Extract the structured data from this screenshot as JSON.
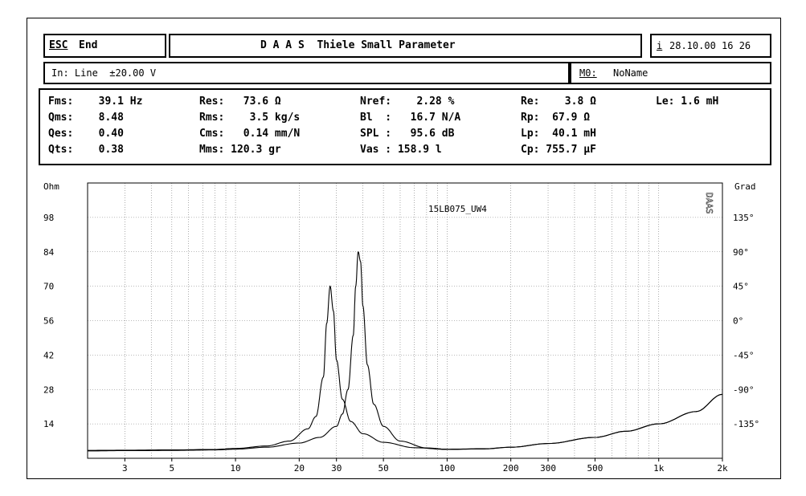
{
  "header": {
    "esc_key": "ESC",
    "esc_label": "End",
    "title": "D A A S  Thiele Small Parameter",
    "info_key": "i",
    "datetime": "28.10.00 16 26"
  },
  "input_row": {
    "input_label": "In: Line  ±20.00 V",
    "memory_key": "M0:",
    "memory_name": "NoName"
  },
  "parameters": {
    "fs": "Fms:    39.1 Hz",
    "qms": "Qms:    8.48",
    "qes": "Qes:    0.40",
    "qts": "Qts:    0.38",
    "res": "Res:   73.6 Ω",
    "rms": "Rms:    3.5 kg/s",
    "cms": "Cms:   0.14 mm/N",
    "mms": "Mms: 120.3 gr",
    "nref": "Nref:    2.28 %",
    "bl": "Bl  :   16.7 N/A",
    "spl": "SPL :   95.6 dB",
    "vas": "Vas : 158.9 l",
    "re": "Re:    3.8 Ω",
    "rp": "Rp:  67.9 Ω",
    "lp": "Lp:  40.1 mH",
    "cp": "Cp: 755.7 µF",
    "le": "Le: 1.6 mH"
  },
  "chart_data": {
    "type": "line",
    "annotation": "15LB075_UW4",
    "watermark": "DAAS",
    "y_left_label": "Ohm",
    "y_right_label": "Grad",
    "x_scale": "log",
    "xlim": [
      2,
      2000
    ],
    "ylim": [
      0,
      112
    ],
    "grid": true,
    "x_ticks": [
      {
        "v": 3,
        "label": "3"
      },
      {
        "v": 5,
        "label": "5"
      },
      {
        "v": 10,
        "label": "10"
      },
      {
        "v": 20,
        "label": "20"
      },
      {
        "v": 30,
        "label": "30"
      },
      {
        "v": 50,
        "label": "50"
      },
      {
        "v": 100,
        "label": "100"
      },
      {
        "v": 200,
        "label": "200"
      },
      {
        "v": 300,
        "label": "300"
      },
      {
        "v": 500,
        "label": "500"
      },
      {
        "v": 1000,
        "label": "1k"
      },
      {
        "v": 2000,
        "label": "2k"
      }
    ],
    "y_left_ticks": [
      {
        "v": 98,
        "label": "98"
      },
      {
        "v": 84,
        "label": "84"
      },
      {
        "v": 70,
        "label": "70"
      },
      {
        "v": 56,
        "label": "56"
      },
      {
        "v": 42,
        "label": "42"
      },
      {
        "v": 28,
        "label": "28"
      },
      {
        "v": 14,
        "label": "14"
      }
    ],
    "y_right_ticks": [
      {
        "v": 98,
        "label": "135°"
      },
      {
        "v": 84,
        "label": "90°"
      },
      {
        "v": 70,
        "label": "45°"
      },
      {
        "v": 56,
        "label": "0°"
      },
      {
        "v": 42,
        "label": "-45°"
      },
      {
        "v": 28,
        "label": "-90°"
      },
      {
        "v": 14,
        "label": "-135°"
      }
    ],
    "series": [
      {
        "x": [
          2,
          3,
          5,
          8,
          10,
          14,
          18,
          22,
          24,
          26,
          27,
          28,
          29,
          30,
          32,
          35,
          40,
          50,
          70,
          100,
          150,
          200,
          300,
          500,
          700,
          1000,
          1500,
          2000
        ],
        "values": [
          3.2,
          3.3,
          3.4,
          3.6,
          4,
          5,
          7,
          12,
          17,
          33,
          55,
          70,
          60,
          40,
          24,
          15,
          10,
          6.5,
          4.3,
          3.6,
          3.8,
          4.5,
          6,
          8.5,
          11,
          14,
          19,
          26
        ]
      },
      {
        "x": [
          2,
          3,
          5,
          8,
          10,
          14,
          20,
          25,
          30,
          32,
          34,
          36,
          37,
          38,
          39,
          40,
          42,
          45,
          50,
          60,
          80,
          100,
          150,
          200,
          300,
          500,
          700,
          1000,
          1500,
          2000
        ],
        "values": [
          3.0,
          3.1,
          3.2,
          3.4,
          3.7,
          4.5,
          6.2,
          8.5,
          13,
          18,
          28,
          50,
          70,
          84,
          80,
          62,
          38,
          22,
          13,
          7,
          4.2,
          3.7,
          3.9,
          4.5,
          6,
          8.5,
          11,
          14,
          19,
          26
        ]
      }
    ]
  }
}
